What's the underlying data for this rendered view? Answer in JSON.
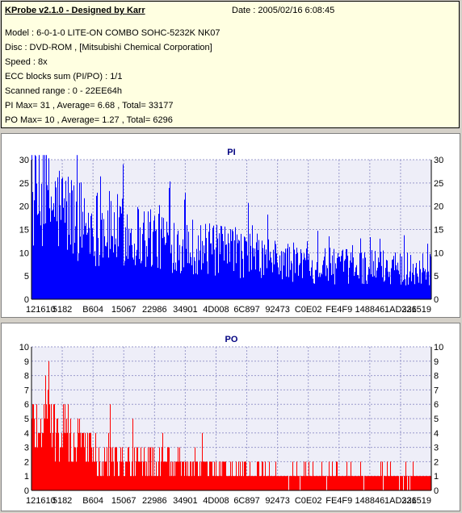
{
  "header": {
    "app_title": "KProbe v2.1.0 - Designed by Karr",
    "date_text": "Date : 2005/02/16 6:08:45",
    "lines": [
      "Model : 6-0-1-0 LITE-ON COMBO SOHC-5232K NK07",
      "Disc : DVD-ROM ,  [Mitsubishi Chemical Corporation]",
      "Speed : 8x",
      "ECC blocks sum (PI/PO) : 1/1",
      "Scanned range : 0 - 22EE64h",
      "PI Max= 31 , Average= 6.68 , Total= 33177",
      "PO Max= 10 , Average= 1.27 , Total= 6296"
    ]
  },
  "colors": {
    "pi": "#0000ff",
    "po": "#ff0000",
    "plot_bg": "#eeeef8",
    "grid": "#9a9acc",
    "title": "#000080"
  },
  "chart_data": [
    {
      "type": "bar",
      "title": "PI",
      "ylim": [
        0,
        30
      ],
      "yticks": [
        0,
        5,
        10,
        15,
        20,
        25,
        30
      ],
      "x_tick_labels": [
        "121610",
        "5182",
        "B604",
        "15067",
        "22986",
        "34901",
        "4D008",
        "6C897",
        "92473",
        "C0E02",
        "FE4F9",
        "148846",
        "1AD336",
        "221519"
      ],
      "grid": true,
      "series": [
        {
          "profile": [
            [
              0,
              20
            ],
            [
              0.03,
              21
            ],
            [
              0.06,
              20
            ],
            [
              0.1,
              18
            ],
            [
              0.15,
              16
            ],
            [
              0.2,
              15
            ],
            [
              0.25,
              14
            ],
            [
              0.3,
              13.5
            ],
            [
              0.35,
              12.5
            ],
            [
              0.4,
              11.5
            ],
            [
              0.45,
              10.5
            ],
            [
              0.5,
              10
            ],
            [
              0.55,
              9.5
            ],
            [
              0.6,
              8.5
            ],
            [
              0.65,
              8
            ],
            [
              0.7,
              7.5
            ],
            [
              0.75,
              7
            ],
            [
              0.8,
              7
            ],
            [
              0.85,
              7
            ],
            [
              0.9,
              7
            ],
            [
              0.95,
              6.5
            ],
            [
              1,
              6.5
            ]
          ],
          "max": 31,
          "average": 6.68
        }
      ]
    },
    {
      "type": "bar",
      "title": "PO",
      "ylim": [
        0,
        10
      ],
      "yticks": [
        0,
        1,
        2,
        3,
        4,
        5,
        6,
        7,
        8,
        9,
        10
      ],
      "x_tick_labels": [
        "121610",
        "5182",
        "B604",
        "15067",
        "22986",
        "34901",
        "4D008",
        "6C897",
        "92473",
        "C0E02",
        "FE4F9",
        "148846",
        "1AD336",
        "221519"
      ],
      "grid": true,
      "series": [
        {
          "profile": [
            [
              0,
              5
            ],
            [
              0.05,
              4.5
            ],
            [
              0.1,
              3.5
            ],
            [
              0.15,
              3
            ],
            [
              0.2,
              2.5
            ],
            [
              0.25,
              2.2
            ],
            [
              0.3,
              2
            ],
            [
              0.35,
              1.8
            ],
            [
              0.4,
              1.6
            ],
            [
              0.45,
              1.5
            ],
            [
              0.5,
              1.3
            ],
            [
              0.55,
              1.2
            ],
            [
              0.6,
              1.1
            ],
            [
              0.65,
              1
            ],
            [
              0.7,
              1
            ],
            [
              0.75,
              1
            ],
            [
              0.8,
              1
            ],
            [
              0.85,
              1
            ],
            [
              0.9,
              1
            ],
            [
              0.95,
              1
            ],
            [
              1,
              1
            ]
          ],
          "max": 10,
          "average": 1.27
        }
      ]
    }
  ]
}
